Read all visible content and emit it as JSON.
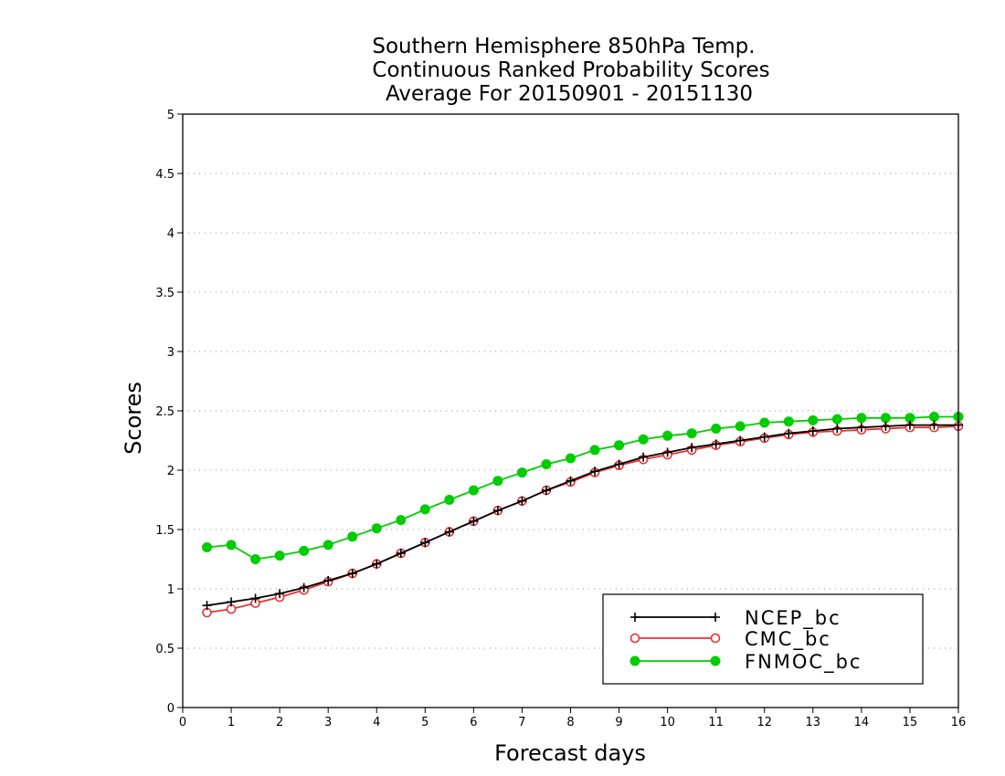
{
  "chart_data": {
    "type": "line",
    "title": [
      "Southern Hemisphere 850hPa Temp.",
      "Continuous Ranked Probability Scores",
      "Average For 20150901 - 20151130"
    ],
    "xlabel": "Forecast days",
    "ylabel": "Scores",
    "xlim": [
      0,
      16
    ],
    "ylim": [
      0,
      5
    ],
    "xticks": [
      0,
      1,
      2,
      3,
      4,
      5,
      6,
      7,
      8,
      9,
      10,
      11,
      12,
      13,
      14,
      15,
      16
    ],
    "yticks": [
      0,
      0.5,
      1,
      1.5,
      2,
      2.5,
      3,
      3.5,
      4,
      4.5,
      5
    ],
    "ytick_labels": [
      "0",
      "0.5",
      "1",
      "1.5",
      "2",
      "2.5",
      "3",
      "3.5",
      "4",
      "4.5",
      "5"
    ],
    "grid": "horizontal dotted",
    "legend_position": "bottom-right",
    "x": [
      0.5,
      1,
      1.5,
      2,
      2.5,
      3,
      3.5,
      4,
      4.5,
      5,
      5.5,
      6,
      6.5,
      7,
      7.5,
      8,
      8.5,
      9,
      9.5,
      10,
      10.5,
      11,
      11.5,
      12,
      12.5,
      13,
      13.5,
      14,
      14.5,
      15,
      15.5,
      16
    ],
    "series": [
      {
        "name": "NCEP_bc",
        "color": "#000000",
        "marker": "plus",
        "values": [
          0.86,
          0.89,
          0.92,
          0.96,
          1.01,
          1.07,
          1.13,
          1.21,
          1.3,
          1.39,
          1.48,
          1.57,
          1.66,
          1.74,
          1.83,
          1.91,
          1.99,
          2.05,
          2.11,
          2.15,
          2.19,
          2.22,
          2.25,
          2.28,
          2.31,
          2.33,
          2.35,
          2.36,
          2.37,
          2.38,
          2.38,
          2.38
        ]
      },
      {
        "name": "CMC_bc",
        "color": "#e83232",
        "marker": "open-circle",
        "values": [
          0.8,
          0.83,
          0.88,
          0.93,
          0.99,
          1.06,
          1.13,
          1.21,
          1.3,
          1.39,
          1.48,
          1.57,
          1.66,
          1.74,
          1.83,
          1.9,
          1.98,
          2.04,
          2.09,
          2.13,
          2.17,
          2.21,
          2.24,
          2.27,
          2.3,
          2.32,
          2.33,
          2.34,
          2.35,
          2.36,
          2.36,
          2.37
        ]
      },
      {
        "name": "FNMOC_bc",
        "color": "#00cc00",
        "marker": "filled-circle",
        "values": [
          1.35,
          1.37,
          1.25,
          1.28,
          1.32,
          1.37,
          1.44,
          1.51,
          1.58,
          1.67,
          1.75,
          1.83,
          1.91,
          1.98,
          2.05,
          2.1,
          2.17,
          2.21,
          2.26,
          2.29,
          2.31,
          2.35,
          2.37,
          2.4,
          2.41,
          2.42,
          2.43,
          2.44,
          2.44,
          2.44,
          2.45,
          2.45
        ]
      }
    ]
  }
}
